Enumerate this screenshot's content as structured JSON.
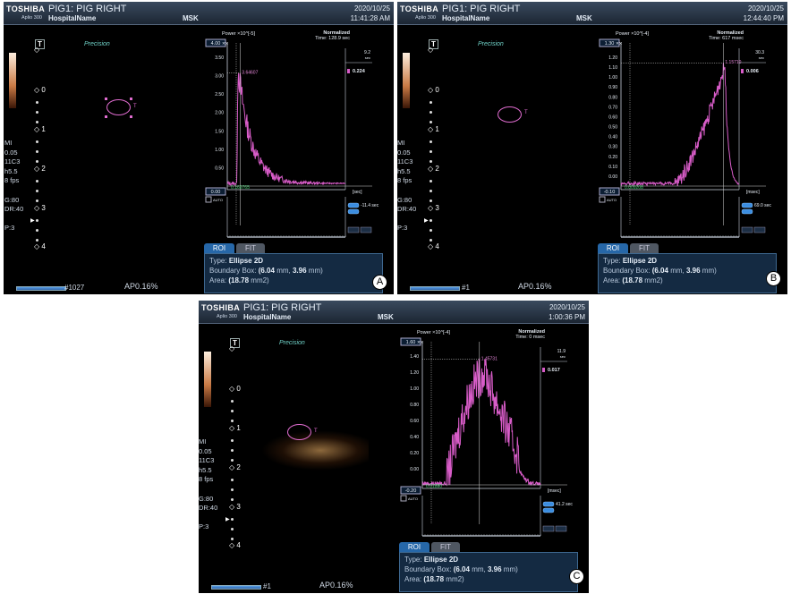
{
  "panels": [
    {
      "id": "A",
      "header": {
        "brand": "TOSHIBA",
        "model": "Aplio 300",
        "patient": "PIG1: PIG  RIGHT",
        "hospital": "HospitalName",
        "preset": "MSK",
        "date": "2020/10/25",
        "time": "11:41:28 AM"
      },
      "precision": "Precision",
      "depth_marks": [
        "0",
        "1",
        "2",
        "3",
        "4"
      ],
      "params": [
        "MI",
        "0.05",
        "11C3",
        "h5.5",
        "8 fps",
        "",
        "G:80",
        "DR:40",
        "",
        "P:3"
      ],
      "roi_marker": "T",
      "chart": {
        "power_label": "Power ×10^[-5]",
        "y_max_label": "4.00",
        "y_min_label": "0.00",
        "y_ticks": [
          "3.50",
          "3.00",
          "2.50",
          "2.00",
          "1.50",
          "1.00",
          "0.50"
        ],
        "peak_label": "3.64607",
        "base_label": "0.169765",
        "mode": "Normalized",
        "time_label": "Time: 128.9 sec",
        "right_top": "9.2",
        "right_top_unit": "sec",
        "right_val": "0.224",
        "auto": "AUTO",
        "x_unit": "[sec]",
        "scroll_val": "-11.4 sec",
        "chart_data": {
          "type": "line",
          "x_unit": "sec",
          "y_unit": "Power ×10^-5",
          "ylim": [
            0,
            4.0
          ],
          "peak": 3.64607,
          "baseline": 0.169765
        }
      },
      "tabs": {
        "roi": "ROI",
        "fit": "FIT"
      },
      "info": {
        "type_label": "Type:",
        "type_value": "Ellipse 2D",
        "box_label": "Boundary Box:",
        "box_w": "6.04",
        "box_unit1": "mm,",
        "box_h": "3.96",
        "box_unit2": "mm",
        "area_label": "Area:",
        "area_value": "18.78",
        "area_unit": "mm2"
      },
      "frame": "#1027",
      "ap": "AP0.16%",
      "letter": "A"
    },
    {
      "id": "B",
      "header": {
        "brand": "TOSHIBA",
        "model": "Aplio 300",
        "patient": "PIG1: PIG  RIGHT",
        "hospital": "HospitalName",
        "preset": "MSK",
        "date": "2020/10/25",
        "time": "12:44:40 PM"
      },
      "precision": "Precision",
      "depth_marks": [
        "0",
        "1",
        "2",
        "3",
        "4"
      ],
      "params": [
        "MI",
        "0.05",
        "11C3",
        "h5.5",
        "8 fps",
        "",
        "G:80",
        "DR:40",
        "",
        "P:3"
      ],
      "roi_marker": "T",
      "chart": {
        "power_label": "Power ×10^[-4]",
        "y_max_label": "1.30",
        "y_min_label": "-0.10",
        "y_ticks": [
          "1.20",
          "1.10",
          "1.00",
          "0.90",
          "0.80",
          "0.70",
          "0.60",
          "0.50",
          "0.40",
          "0.30",
          "0.20",
          "0.10",
          "0.00"
        ],
        "peak_label": "1.15710",
        "base_label": "0.009208",
        "mode": "Normalized",
        "time_label": "Time: 617 msec",
        "right_top": "30.3",
        "right_top_unit": "sec",
        "right_val": "0.006",
        "auto": "AUTO",
        "x_unit": "[msec]",
        "scroll_val": "69.0 sec",
        "chart_data": {
          "type": "line",
          "x_unit": "msec",
          "y_unit": "Power ×10^-4",
          "ylim": [
            -0.1,
            1.3
          ],
          "peak": 1.1571,
          "baseline": 0.009208
        }
      },
      "tabs": {
        "roi": "ROI",
        "fit": "FIT"
      },
      "info": {
        "type_label": "Type:",
        "type_value": "Ellipse 2D",
        "box_label": "Boundary Box:",
        "box_w": "6.04",
        "box_unit1": "mm,",
        "box_h": "3.96",
        "box_unit2": "mm",
        "area_label": "Area:",
        "area_value": "18.78",
        "area_unit": "mm2"
      },
      "frame": "#1",
      "ap": "AP0.16%",
      "letter": "B"
    },
    {
      "id": "C",
      "header": {
        "brand": "TOSHIBA",
        "model": "Aplio 300",
        "patient": "PIG1: PIG  RIGHT",
        "hospital": "HospitalName",
        "preset": "MSK",
        "date": "2020/10/25",
        "time": "1:00:36 PM"
      },
      "precision": "Precision",
      "depth_marks": [
        "0",
        "1",
        "2",
        "3",
        "4"
      ],
      "params": [
        "MI",
        "0.05",
        "11C3",
        "h5.5",
        "8 fps",
        "",
        "G:80",
        "DR:40",
        "",
        "P:3"
      ],
      "roi_marker": "T",
      "chart": {
        "power_label": "Power ×10^[-4]",
        "y_max_label": "1.60",
        "y_min_label": "-0.20",
        "y_ticks": [
          "1.40",
          "1.20",
          "1.00",
          "0.80",
          "0.60",
          "0.40",
          "0.20",
          "0.00"
        ],
        "peak_label": "1.45731",
        "base_label": "0.01880",
        "mode": "Normalized",
        "time_label": "Time: 0 msec",
        "right_top": "11.9",
        "right_top_unit": "sec",
        "right_val": "0.017",
        "auto": "AUTO",
        "x_unit": "[msec]",
        "scroll_val": "41.2 sec",
        "chart_data": {
          "type": "line",
          "x_unit": "msec",
          "y_unit": "Power ×10^-4",
          "ylim": [
            -0.2,
            1.6
          ],
          "peak": 1.45731,
          "baseline": 0.0188
        }
      },
      "tabs": {
        "roi": "ROI",
        "fit": "FIT"
      },
      "info": {
        "type_label": "Type:",
        "type_value": "Ellipse 2D",
        "box_label": "Boundary Box:",
        "box_w": "6.04",
        "box_unit1": "mm,",
        "box_h": "3.96",
        "box_unit2": "mm",
        "area_label": "Area:",
        "area_value": "18.78",
        "area_unit": "mm2"
      },
      "frame": "#1",
      "ap": "AP0.16%",
      "letter": "C"
    }
  ],
  "colors": {
    "curve": "#d85cc8",
    "panel_bg": "#000000",
    "header": "#2a3848",
    "accent": "#2667a8",
    "green": "#39d06a"
  }
}
